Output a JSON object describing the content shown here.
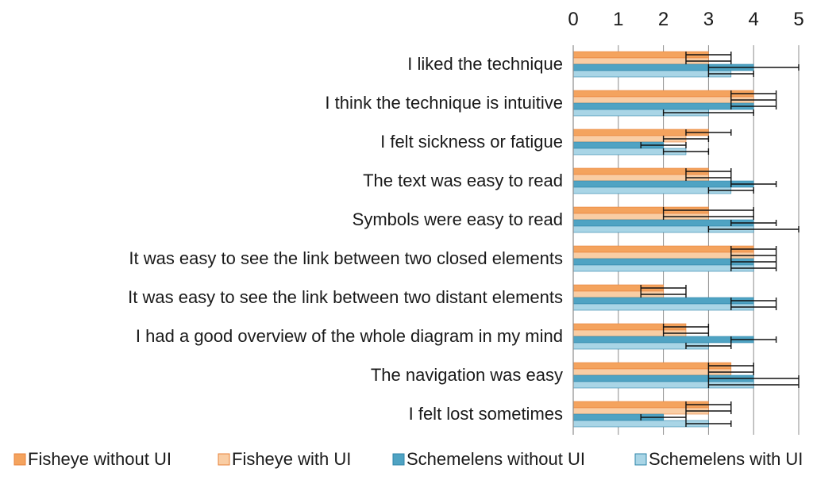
{
  "chart_data": {
    "type": "bar",
    "orientation": "horizontal",
    "xlim": [
      0,
      5
    ],
    "x_ticks": [
      0,
      1,
      2,
      3,
      4,
      5
    ],
    "axis_position": "top",
    "grid": true,
    "legend_position": "bottom",
    "categories": [
      "I liked the technique",
      "I think the technique is intuitive",
      "I felt sickness or fatigue",
      "The text was easy to read",
      "Symbols were easy to read",
      "It was easy to see the link between two closed elements",
      "It was easy to see the link between two distant elements",
      "I had a good overview of the whole diagram in my mind",
      "The navigation was easy",
      "I felt lost sometimes"
    ],
    "series": [
      {
        "name": "Fisheye without UI",
        "color": "#f4a35e",
        "values": [
          3,
          4,
          3,
          3,
          3,
          4,
          2,
          2.5,
          3.5,
          3
        ],
        "errors": [
          0.5,
          0.5,
          0.5,
          0.5,
          1,
          0.5,
          0.5,
          0.5,
          0.5,
          0.5
        ]
      },
      {
        "name": "Fisheye with UI",
        "color": "#f9cda4",
        "values": [
          3,
          4,
          2.5,
          3,
          3,
          4,
          2,
          2.5,
          3.5,
          3
        ],
        "errors": [
          0.5,
          0.5,
          0.5,
          0.5,
          1,
          0.5,
          0.5,
          0.5,
          0.5,
          0.5
        ]
      },
      {
        "name": "Schemelens without UI",
        "color": "#4fa3c3",
        "values": [
          4,
          4,
          2,
          4,
          4,
          4,
          4,
          4,
          4,
          2
        ],
        "errors": [
          1,
          0.5,
          0.5,
          0.5,
          0.5,
          0.5,
          0.5,
          0.5,
          1,
          0.5
        ]
      },
      {
        "name": "Schemelens with UI",
        "color": "#a9d5e6",
        "values": [
          3.5,
          3,
          2.5,
          3.5,
          4,
          4,
          4,
          3,
          4,
          3
        ],
        "errors": [
          0.5,
          1,
          0.5,
          0.5,
          1,
          0.5,
          0.5,
          0.5,
          1,
          0.5
        ]
      }
    ]
  }
}
